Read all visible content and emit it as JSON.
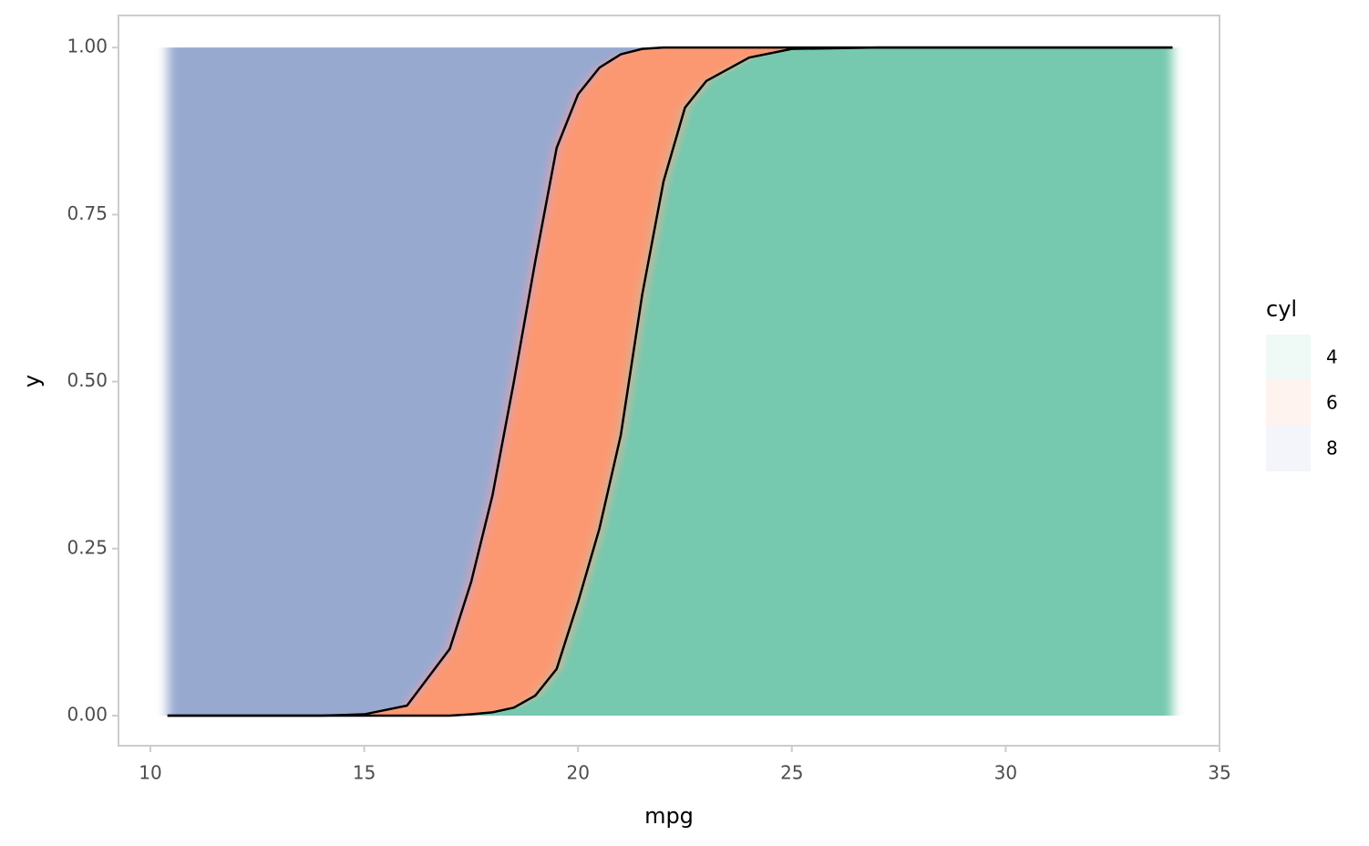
{
  "chart_data": {
    "type": "area",
    "stacked": true,
    "x_label": "mpg",
    "y_label": "y",
    "legend_title": "cyl",
    "legend_position": "right",
    "x": [
      10.4,
      12,
      14,
      15,
      16,
      17,
      17.5,
      18,
      18.5,
      19,
      19.5,
      20,
      20.5,
      21,
      21.5,
      22,
      22.5,
      23,
      24,
      25,
      27,
      30,
      33.9
    ],
    "series": [
      {
        "name": "4",
        "color": "#66c2a5",
        "values": [
          0,
          0,
          0,
          0,
          0,
          0,
          0.002,
          0.005,
          0.012,
          0.03,
          0.07,
          0.17,
          0.28,
          0.42,
          0.63,
          0.8,
          0.91,
          0.95,
          0.985,
          0.998,
          1,
          1,
          1
        ]
      },
      {
        "name": "6",
        "color": "#fc8d62",
        "values": [
          0,
          0,
          0,
          0.002,
          0.015,
          0.1,
          0.198,
          0.325,
          0.488,
          0.65,
          0.78,
          0.76,
          0.69,
          0.57,
          0.368,
          0.2,
          0.09,
          0.05,
          0.015,
          0.002,
          0,
          0,
          0
        ]
      },
      {
        "name": "8",
        "color": "#8da0cb",
        "values": [
          1,
          1,
          1,
          0.998,
          0.985,
          0.9,
          0.8,
          0.67,
          0.5,
          0.32,
          0.15,
          0.07,
          0.03,
          0.01,
          0.002,
          0,
          0,
          0,
          0,
          0,
          0,
          0,
          0
        ]
      }
    ],
    "boundary_color": "#000000",
    "xlim": [
      9.254,
      35
    ],
    "xticks": [
      10,
      15,
      20,
      25,
      30,
      35
    ],
    "ylim": [
      -0.045,
      1.048
    ],
    "yticks": [
      {
        "value": 0,
        "label": "0.00"
      },
      {
        "value": 0.25,
        "label": "0.25"
      },
      {
        "value": 0.5,
        "label": "0.50"
      },
      {
        "value": 0.75,
        "label": "0.75"
      },
      {
        "value": 1,
        "label": "1.00"
      }
    ]
  }
}
